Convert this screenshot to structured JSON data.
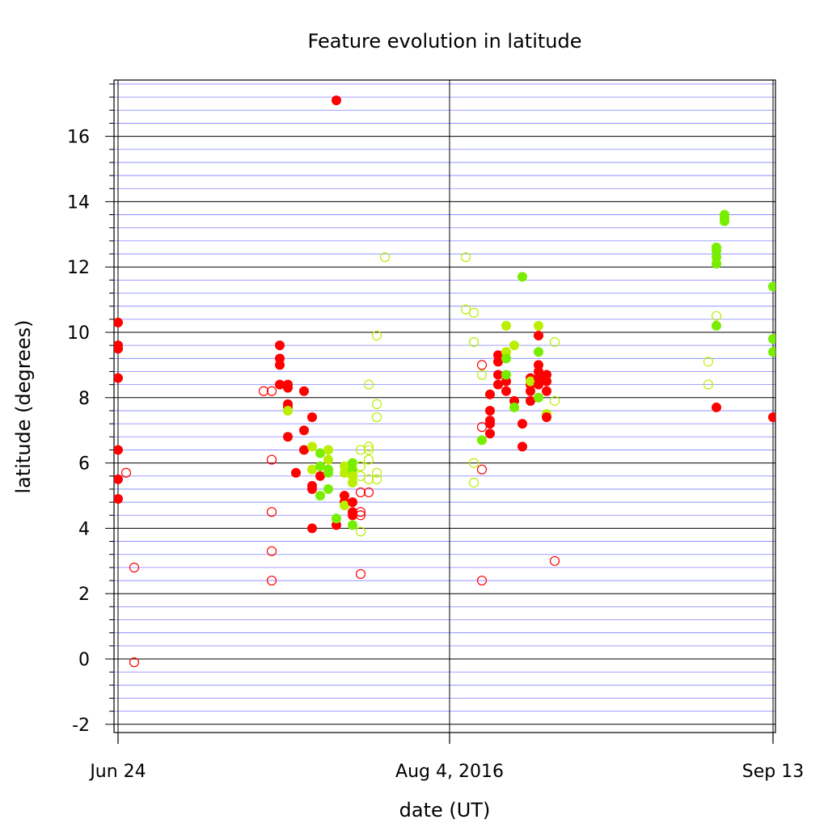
{
  "chart_data": {
    "type": "scatter",
    "title": "Feature evolution in latitude",
    "xlabel": "date (UT)",
    "ylabel": "latitude (degrees)",
    "x_tick_labels": [
      "Jun 24",
      "Aug 4, 2016",
      "Sep 13"
    ],
    "x_ticks": [
      "2016-06-24",
      "2016-08-04",
      "2016-09-13"
    ],
    "xlim": [
      "2016-06-24",
      "2016-09-13"
    ],
    "ylim": [
      -2.3,
      17.7
    ],
    "y_ticks": [
      -2,
      0,
      2,
      4,
      6,
      8,
      10,
      12,
      14,
      16
    ],
    "grid": true,
    "colors": {
      "red": "#ff0000",
      "yellow_green": "#bbee00",
      "green": "#77ee00",
      "minor_grid": "#8080ff"
    },
    "points": [
      {
        "date": "2016-06-24",
        "lat": 10.3,
        "color": "red",
        "filled": true
      },
      {
        "date": "2016-06-24",
        "lat": 9.6,
        "color": "red",
        "filled": true
      },
      {
        "date": "2016-06-24",
        "lat": 9.5,
        "color": "red",
        "filled": true
      },
      {
        "date": "2016-06-24",
        "lat": 8.6,
        "color": "red",
        "filled": true
      },
      {
        "date": "2016-06-24",
        "lat": 6.4,
        "color": "red",
        "filled": true
      },
      {
        "date": "2016-06-24",
        "lat": 5.5,
        "color": "red",
        "filled": true
      },
      {
        "date": "2016-06-24",
        "lat": 4.9,
        "color": "red",
        "filled": true
      },
      {
        "date": "2016-06-25",
        "lat": 5.7,
        "color": "red",
        "filled": false
      },
      {
        "date": "2016-06-26",
        "lat": 2.8,
        "color": "red",
        "filled": false
      },
      {
        "date": "2016-06-26",
        "lat": -0.1,
        "color": "red",
        "filled": false
      },
      {
        "date": "2016-07-12",
        "lat": 8.2,
        "color": "red",
        "filled": false
      },
      {
        "date": "2016-07-13",
        "lat": 8.2,
        "color": "red",
        "filled": false
      },
      {
        "date": "2016-07-13",
        "lat": 6.1,
        "color": "red",
        "filled": false
      },
      {
        "date": "2016-07-13",
        "lat": 4.5,
        "color": "red",
        "filled": false
      },
      {
        "date": "2016-07-13",
        "lat": 3.3,
        "color": "red",
        "filled": false
      },
      {
        "date": "2016-07-13",
        "lat": 2.4,
        "color": "red",
        "filled": false
      },
      {
        "date": "2016-07-14",
        "lat": 9.6,
        "color": "red",
        "filled": true
      },
      {
        "date": "2016-07-14",
        "lat": 9.2,
        "color": "red",
        "filled": true
      },
      {
        "date": "2016-07-14",
        "lat": 9.0,
        "color": "red",
        "filled": true
      },
      {
        "date": "2016-07-14",
        "lat": 8.4,
        "color": "red",
        "filled": true
      },
      {
        "date": "2016-07-15",
        "lat": 8.4,
        "color": "red",
        "filled": true
      },
      {
        "date": "2016-07-15",
        "lat": 8.3,
        "color": "red",
        "filled": true
      },
      {
        "date": "2016-07-15",
        "lat": 7.8,
        "color": "red",
        "filled": true
      },
      {
        "date": "2016-07-15",
        "lat": 7.7,
        "color": "red",
        "filled": true
      },
      {
        "date": "2016-07-15",
        "lat": 7.6,
        "color": "yellow_green",
        "filled": true
      },
      {
        "date": "2016-07-15",
        "lat": 6.8,
        "color": "red",
        "filled": true
      },
      {
        "date": "2016-07-16",
        "lat": 5.7,
        "color": "red",
        "filled": true
      },
      {
        "date": "2016-07-17",
        "lat": 8.2,
        "color": "red",
        "filled": true
      },
      {
        "date": "2016-07-17",
        "lat": 7.0,
        "color": "red",
        "filled": true
      },
      {
        "date": "2016-07-17",
        "lat": 6.4,
        "color": "red",
        "filled": true
      },
      {
        "date": "2016-07-18",
        "lat": 7.4,
        "color": "red",
        "filled": true
      },
      {
        "date": "2016-07-18",
        "lat": 5.3,
        "color": "red",
        "filled": true
      },
      {
        "date": "2016-07-18",
        "lat": 5.2,
        "color": "red",
        "filled": true
      },
      {
        "date": "2016-07-18",
        "lat": 4.0,
        "color": "red",
        "filled": true
      },
      {
        "date": "2016-07-18",
        "lat": 6.5,
        "color": "yellow_green",
        "filled": true
      },
      {
        "date": "2016-07-18",
        "lat": 5.8,
        "color": "yellow_green",
        "filled": true
      },
      {
        "date": "2016-07-19",
        "lat": 5.6,
        "color": "red",
        "filled": true
      },
      {
        "date": "2016-07-19",
        "lat": 6.3,
        "color": "green",
        "filled": true
      },
      {
        "date": "2016-07-19",
        "lat": 5.0,
        "color": "green",
        "filled": true
      },
      {
        "date": "2016-07-19",
        "lat": 5.9,
        "color": "green",
        "filled": true
      },
      {
        "date": "2016-07-20",
        "lat": 6.4,
        "color": "yellow_green",
        "filled": true
      },
      {
        "date": "2016-07-20",
        "lat": 6.1,
        "color": "yellow_green",
        "filled": true
      },
      {
        "date": "2016-07-20",
        "lat": 5.8,
        "color": "green",
        "filled": true
      },
      {
        "date": "2016-07-20",
        "lat": 5.7,
        "color": "green",
        "filled": true
      },
      {
        "date": "2016-07-20",
        "lat": 5.2,
        "color": "green",
        "filled": true
      },
      {
        "date": "2016-07-21",
        "lat": 17.1,
        "color": "red",
        "filled": true
      },
      {
        "date": "2016-07-21",
        "lat": 4.1,
        "color": "red",
        "filled": true
      },
      {
        "date": "2016-07-21",
        "lat": 4.3,
        "color": "green",
        "filled": true
      },
      {
        "date": "2016-07-22",
        "lat": 5.9,
        "color": "yellow_green",
        "filled": true
      },
      {
        "date": "2016-07-22",
        "lat": 5.7,
        "color": "yellow_green",
        "filled": true
      },
      {
        "date": "2016-07-22",
        "lat": 5.0,
        "color": "red",
        "filled": true
      },
      {
        "date": "2016-07-22",
        "lat": 4.8,
        "color": "red",
        "filled": true
      },
      {
        "date": "2016-07-22",
        "lat": 4.7,
        "color": "yellow_green",
        "filled": true
      },
      {
        "date": "2016-07-23",
        "lat": 6.0,
        "color": "green",
        "filled": true
      },
      {
        "date": "2016-07-23",
        "lat": 5.8,
        "color": "green",
        "filled": true
      },
      {
        "date": "2016-07-23",
        "lat": 5.6,
        "color": "yellow_green",
        "filled": true
      },
      {
        "date": "2016-07-23",
        "lat": 5.4,
        "color": "yellow_green",
        "filled": true
      },
      {
        "date": "2016-07-23",
        "lat": 4.8,
        "color": "red",
        "filled": true
      },
      {
        "date": "2016-07-23",
        "lat": 4.5,
        "color": "red",
        "filled": true
      },
      {
        "date": "2016-07-23",
        "lat": 4.4,
        "color": "red",
        "filled": true
      },
      {
        "date": "2016-07-23",
        "lat": 4.1,
        "color": "green",
        "filled": true
      },
      {
        "date": "2016-07-24",
        "lat": 6.4,
        "color": "yellow_green",
        "filled": false
      },
      {
        "date": "2016-07-24",
        "lat": 5.9,
        "color": "yellow_green",
        "filled": false
      },
      {
        "date": "2016-07-24",
        "lat": 5.6,
        "color": "yellow_green",
        "filled": false
      },
      {
        "date": "2016-07-24",
        "lat": 5.1,
        "color": "red",
        "filled": false
      },
      {
        "date": "2016-07-24",
        "lat": 4.5,
        "color": "red",
        "filled": false
      },
      {
        "date": "2016-07-24",
        "lat": 4.4,
        "color": "red",
        "filled": false
      },
      {
        "date": "2016-07-24",
        "lat": 3.9,
        "color": "yellow_green",
        "filled": false
      },
      {
        "date": "2016-07-24",
        "lat": 2.6,
        "color": "red",
        "filled": false
      },
      {
        "date": "2016-07-25",
        "lat": 5.1,
        "color": "red",
        "filled": false
      },
      {
        "date": "2016-07-25",
        "lat": 6.5,
        "color": "yellow_green",
        "filled": false
      },
      {
        "date": "2016-07-25",
        "lat": 6.4,
        "color": "yellow_green",
        "filled": false
      },
      {
        "date": "2016-07-25",
        "lat": 6.1,
        "color": "yellow_green",
        "filled": false
      },
      {
        "date": "2016-07-25",
        "lat": 5.5,
        "color": "yellow_green",
        "filled": false
      },
      {
        "date": "2016-07-25",
        "lat": 8.4,
        "color": "yellow_green",
        "filled": false
      },
      {
        "date": "2016-07-26",
        "lat": 9.9,
        "color": "yellow_green",
        "filled": false
      },
      {
        "date": "2016-07-26",
        "lat": 7.8,
        "color": "yellow_green",
        "filled": false
      },
      {
        "date": "2016-07-26",
        "lat": 7.4,
        "color": "yellow_green",
        "filled": false
      },
      {
        "date": "2016-07-26",
        "lat": 5.7,
        "color": "yellow_green",
        "filled": false
      },
      {
        "date": "2016-07-26",
        "lat": 5.5,
        "color": "yellow_green",
        "filled": false
      },
      {
        "date": "2016-07-27",
        "lat": 12.3,
        "color": "yellow_green",
        "filled": false
      },
      {
        "date": "2016-08-06",
        "lat": 12.3,
        "color": "yellow_green",
        "filled": false
      },
      {
        "date": "2016-08-06",
        "lat": 10.7,
        "color": "yellow_green",
        "filled": false
      },
      {
        "date": "2016-08-07",
        "lat": 10.6,
        "color": "yellow_green",
        "filled": false
      },
      {
        "date": "2016-08-07",
        "lat": 9.7,
        "color": "yellow_green",
        "filled": false
      },
      {
        "date": "2016-08-07",
        "lat": 6.0,
        "color": "yellow_green",
        "filled": false
      },
      {
        "date": "2016-08-07",
        "lat": 5.4,
        "color": "yellow_green",
        "filled": false
      },
      {
        "date": "2016-08-08",
        "lat": 9.0,
        "color": "red",
        "filled": false
      },
      {
        "date": "2016-08-08",
        "lat": 8.7,
        "color": "yellow_green",
        "filled": false
      },
      {
        "date": "2016-08-08",
        "lat": 7.1,
        "color": "red",
        "filled": false
      },
      {
        "date": "2016-08-08",
        "lat": 6.7,
        "color": "green",
        "filled": true
      },
      {
        "date": "2016-08-08",
        "lat": 5.8,
        "color": "red",
        "filled": false
      },
      {
        "date": "2016-08-08",
        "lat": 2.4,
        "color": "red",
        "filled": false
      },
      {
        "date": "2016-08-09",
        "lat": 8.1,
        "color": "red",
        "filled": true
      },
      {
        "date": "2016-08-09",
        "lat": 7.6,
        "color": "red",
        "filled": true
      },
      {
        "date": "2016-08-09",
        "lat": 7.3,
        "color": "red",
        "filled": true
      },
      {
        "date": "2016-08-09",
        "lat": 7.2,
        "color": "red",
        "filled": true
      },
      {
        "date": "2016-08-09",
        "lat": 6.9,
        "color": "red",
        "filled": true
      },
      {
        "date": "2016-08-10",
        "lat": 9.3,
        "color": "red",
        "filled": true
      },
      {
        "date": "2016-08-10",
        "lat": 9.1,
        "color": "red",
        "filled": true
      },
      {
        "date": "2016-08-10",
        "lat": 8.7,
        "color": "red",
        "filled": true
      },
      {
        "date": "2016-08-10",
        "lat": 8.4,
        "color": "red",
        "filled": true
      },
      {
        "date": "2016-08-11",
        "lat": 8.5,
        "color": "red",
        "filled": true
      },
      {
        "date": "2016-08-11",
        "lat": 8.2,
        "color": "red",
        "filled": true
      },
      {
        "date": "2016-08-11",
        "lat": 10.2,
        "color": "yellow_green",
        "filled": true
      },
      {
        "date": "2016-08-11",
        "lat": 9.4,
        "color": "yellow_green",
        "filled": true
      },
      {
        "date": "2016-08-11",
        "lat": 9.2,
        "color": "green",
        "filled": true
      },
      {
        "date": "2016-08-11",
        "lat": 8.7,
        "color": "green",
        "filled": true
      },
      {
        "date": "2016-08-12",
        "lat": 9.6,
        "color": "yellow_green",
        "filled": true
      },
      {
        "date": "2016-08-12",
        "lat": 7.9,
        "color": "red",
        "filled": true
      },
      {
        "date": "2016-08-12",
        "lat": 7.7,
        "color": "green",
        "filled": true
      },
      {
        "date": "2016-08-13",
        "lat": 11.7,
        "color": "green",
        "filled": true
      },
      {
        "date": "2016-08-13",
        "lat": 7.2,
        "color": "red",
        "filled": true
      },
      {
        "date": "2016-08-13",
        "lat": 6.5,
        "color": "red",
        "filled": true
      },
      {
        "date": "2016-08-14",
        "lat": 8.6,
        "color": "red",
        "filled": true
      },
      {
        "date": "2016-08-14",
        "lat": 8.4,
        "color": "red",
        "filled": true
      },
      {
        "date": "2016-08-14",
        "lat": 8.2,
        "color": "red",
        "filled": true
      },
      {
        "date": "2016-08-14",
        "lat": 7.9,
        "color": "red",
        "filled": true
      },
      {
        "date": "2016-08-14",
        "lat": 8.5,
        "color": "yellow_green",
        "filled": true
      },
      {
        "date": "2016-08-15",
        "lat": 10.2,
        "color": "yellow_green",
        "filled": true
      },
      {
        "date": "2016-08-15",
        "lat": 9.9,
        "color": "red",
        "filled": true
      },
      {
        "date": "2016-08-15",
        "lat": 9.4,
        "color": "green",
        "filled": true
      },
      {
        "date": "2016-08-15",
        "lat": 9.0,
        "color": "red",
        "filled": true
      },
      {
        "date": "2016-08-15",
        "lat": 8.8,
        "color": "red",
        "filled": true
      },
      {
        "date": "2016-08-15",
        "lat": 8.6,
        "color": "red",
        "filled": true
      },
      {
        "date": "2016-08-15",
        "lat": 8.4,
        "color": "red",
        "filled": true
      },
      {
        "date": "2016-08-15",
        "lat": 8.0,
        "color": "green",
        "filled": true
      },
      {
        "date": "2016-08-16",
        "lat": 8.7,
        "color": "red",
        "filled": true
      },
      {
        "date": "2016-08-16",
        "lat": 8.5,
        "color": "red",
        "filled": true
      },
      {
        "date": "2016-08-16",
        "lat": 8.2,
        "color": "red",
        "filled": true
      },
      {
        "date": "2016-08-16",
        "lat": 7.5,
        "color": "yellow_green",
        "filled": true
      },
      {
        "date": "2016-08-16",
        "lat": 7.4,
        "color": "red",
        "filled": true
      },
      {
        "date": "2016-08-17",
        "lat": 9.7,
        "color": "yellow_green",
        "filled": false
      },
      {
        "date": "2016-08-17",
        "lat": 7.9,
        "color": "yellow_green",
        "filled": false
      },
      {
        "date": "2016-08-17",
        "lat": 3.0,
        "color": "red",
        "filled": false
      },
      {
        "date": "2016-09-05",
        "lat": 9.1,
        "color": "yellow_green",
        "filled": false
      },
      {
        "date": "2016-09-05",
        "lat": 8.4,
        "color": "yellow_green",
        "filled": false
      },
      {
        "date": "2016-09-06",
        "lat": 10.5,
        "color": "yellow_green",
        "filled": false
      },
      {
        "date": "2016-09-06",
        "lat": 12.6,
        "color": "green",
        "filled": true
      },
      {
        "date": "2016-09-06",
        "lat": 12.5,
        "color": "green",
        "filled": true
      },
      {
        "date": "2016-09-06",
        "lat": 12.3,
        "color": "green",
        "filled": true
      },
      {
        "date": "2016-09-06",
        "lat": 12.1,
        "color": "green",
        "filled": true
      },
      {
        "date": "2016-09-06",
        "lat": 10.2,
        "color": "green",
        "filled": true
      },
      {
        "date": "2016-09-06",
        "lat": 7.7,
        "color": "red",
        "filled": true
      },
      {
        "date": "2016-09-07",
        "lat": 13.6,
        "color": "green",
        "filled": true
      },
      {
        "date": "2016-09-07",
        "lat": 13.5,
        "color": "green",
        "filled": true
      },
      {
        "date": "2016-09-07",
        "lat": 13.4,
        "color": "green",
        "filled": true
      },
      {
        "date": "2016-09-13",
        "lat": 11.4,
        "color": "green",
        "filled": true
      },
      {
        "date": "2016-09-13",
        "lat": 9.8,
        "color": "green",
        "filled": true
      },
      {
        "date": "2016-09-13",
        "lat": 9.4,
        "color": "green",
        "filled": true
      },
      {
        "date": "2016-09-13",
        "lat": 7.4,
        "color": "red",
        "filled": true
      }
    ]
  }
}
